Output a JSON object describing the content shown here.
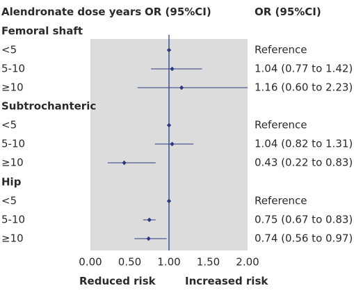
{
  "header": {
    "col1": "Alendronate dose years",
    "col2": "OR (95%CI)",
    "col3": "OR (95%CI)"
  },
  "footer": {
    "reduced": "Reduced risk",
    "increased": "Increased risk"
  },
  "colors": {
    "panel": "#dcdcdc",
    "marker": "#2b3a80"
  },
  "chart_data": {
    "type": "forest",
    "title": "",
    "xlabel": "",
    "xlim": [
      0,
      2
    ],
    "x_ticks": [
      "0.00",
      "0.50",
      "1.00",
      "1.50",
      "2.00"
    ],
    "reference_line": 1.0,
    "groups": [
      {
        "name": "Femoral shaft",
        "rows": [
          {
            "label": "<5",
            "or": 1.0,
            "lo": null,
            "hi": null,
            "text": "Reference"
          },
          {
            "label": "5-10",
            "or": 1.04,
            "lo": 0.77,
            "hi": 1.42,
            "text": "1.04 (0.77 to 1.42)"
          },
          {
            "label": "≥10",
            "or": 1.16,
            "lo": 0.6,
            "hi": 2.23,
            "text": "1.16 (0.60 to 2.23)"
          }
        ]
      },
      {
        "name": "Subtrochanteric",
        "rows": [
          {
            "label": "<5",
            "or": 1.0,
            "lo": null,
            "hi": null,
            "text": "Reference"
          },
          {
            "label": "5-10",
            "or": 1.04,
            "lo": 0.82,
            "hi": 1.31,
            "text": "1.04 (0.82 to 1.31)"
          },
          {
            "label": "≥10",
            "or": 0.43,
            "lo": 0.22,
            "hi": 0.83,
            "text": "0.43 (0.22 to 0.83)"
          }
        ]
      },
      {
        "name": "Hip",
        "rows": [
          {
            "label": "<5",
            "or": 1.0,
            "lo": null,
            "hi": null,
            "text": "Reference"
          },
          {
            "label": "5-10",
            "or": 0.75,
            "lo": 0.67,
            "hi": 0.83,
            "text": "0.75 (0.67 to 0.83)"
          },
          {
            "label": "≥10",
            "or": 0.74,
            "lo": 0.56,
            "hi": 0.97,
            "text": "0.74 (0.56 to 0.97)"
          }
        ]
      }
    ]
  }
}
